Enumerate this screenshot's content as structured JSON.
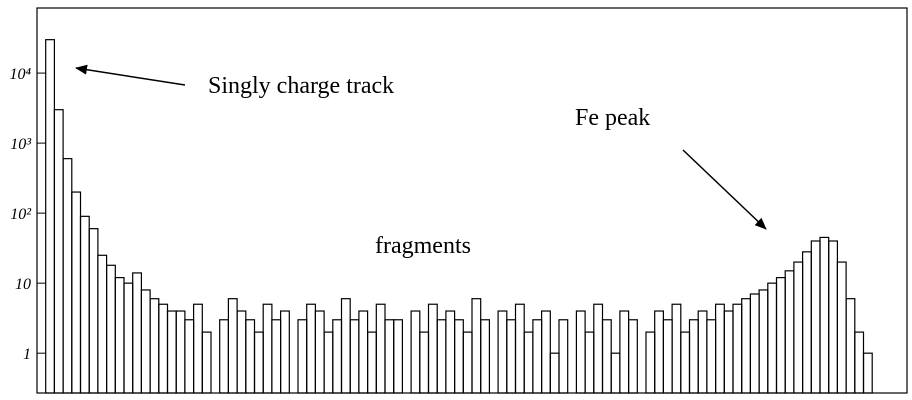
{
  "chart_data": {
    "type": "histogram",
    "log_y": true,
    "bins": [
      0,
      250,
      500,
      750,
      1000,
      1250,
      1500,
      1750,
      2000,
      2250,
      2500,
      2750,
      3000,
      3250,
      3500,
      3750,
      4000,
      4250,
      4500,
      4750,
      5000,
      5250,
      5500,
      5750,
      6000,
      6250,
      6500,
      6750,
      7000,
      7250,
      7500,
      7750,
      8000,
      8250,
      8500,
      8750,
      9000,
      9250,
      9500,
      9750,
      10000,
      10250,
      10500,
      10750,
      11000,
      11250,
      11500,
      11750,
      12000,
      12250,
      12500,
      12750,
      13000,
      13250,
      13500,
      13750,
      14000,
      14250,
      14500,
      14750,
      15000,
      15250,
      15500,
      15750,
      16000,
      16250,
      16500,
      16750,
      17000,
      17250,
      17500,
      17750,
      18000,
      18250,
      18500,
      18750,
      19000,
      19250,
      19500,
      19750,
      20000,
      20250,
      20500,
      20750,
      21000,
      21250,
      21500,
      21750,
      22000,
      22250,
      22500,
      22750,
      23000,
      23250,
      23500,
      23750,
      24000
    ],
    "values": [
      0,
      30000,
      3000,
      600,
      200,
      90,
      60,
      25,
      18,
      12,
      10,
      14,
      8,
      6,
      5,
      4,
      4,
      3,
      5,
      2,
      0,
      3,
      6,
      4,
      3,
      2,
      5,
      3,
      4,
      0,
      3,
      5,
      4,
      2,
      3,
      6,
      3,
      4,
      2,
      5,
      3,
      3,
      0,
      4,
      2,
      5,
      3,
      4,
      3,
      2,
      6,
      3,
      0,
      4,
      3,
      5,
      2,
      3,
      4,
      1,
      3,
      0,
      4,
      2,
      5,
      3,
      1,
      4,
      3,
      0,
      2,
      4,
      3,
      5,
      2,
      3,
      4,
      3,
      5,
      4,
      5,
      6,
      7,
      8,
      10,
      12,
      15,
      20,
      28,
      40,
      45,
      40,
      20,
      6,
      2,
      1
    ],
    "color": "#000000",
    "xlim": [
      0,
      25000
    ],
    "xticks": [
      0,
      5000,
      10000,
      15000,
      20000,
      25000
    ],
    "ylim": [
      0.27,
      85000
    ],
    "yticks": [
      1,
      10,
      {
        "value": 100,
        "label": "10²"
      },
      {
        "value": 1000,
        "label": "10³"
      },
      {
        "value": 10000,
        "label": "10⁴"
      }
    ],
    "annotations": [
      {
        "text": "Singly charge track"
      },
      {
        "text": "Fe peak"
      },
      {
        "text": "fragments"
      }
    ]
  }
}
